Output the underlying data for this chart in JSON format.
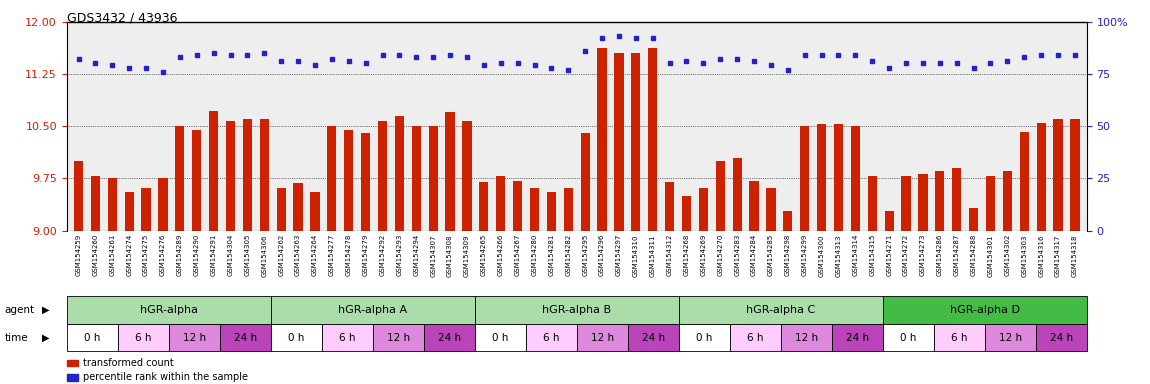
{
  "title": "GDS3432 / 43936",
  "gsm_labels": [
    "GSM154259",
    "GSM154260",
    "GSM154261",
    "GSM154274",
    "GSM154275",
    "GSM154276",
    "GSM154289",
    "GSM154290",
    "GSM154291",
    "GSM154304",
    "GSM154305",
    "GSM154306",
    "GSM154262",
    "GSM154263",
    "GSM154264",
    "GSM154277",
    "GSM154278",
    "GSM154279",
    "GSM154292",
    "GSM154293",
    "GSM154294",
    "GSM154307",
    "GSM154308",
    "GSM154309",
    "GSM154265",
    "GSM154266",
    "GSM154267",
    "GSM154280",
    "GSM154281",
    "GSM154282",
    "GSM154295",
    "GSM154296",
    "GSM154297",
    "GSM154310",
    "GSM154311",
    "GSM154312",
    "GSM154268",
    "GSM154269",
    "GSM154270",
    "GSM154283",
    "GSM154284",
    "GSM154285",
    "GSM154298",
    "GSM154299",
    "GSM154300",
    "GSM154313",
    "GSM154314",
    "GSM154315",
    "GSM154271",
    "GSM154272",
    "GSM154273",
    "GSM154286",
    "GSM154287",
    "GSM154288",
    "GSM154301",
    "GSM154302",
    "GSM154303",
    "GSM154316",
    "GSM154317",
    "GSM154318"
  ],
  "bar_values": [
    10.0,
    9.78,
    9.75,
    9.55,
    9.62,
    9.75,
    10.5,
    10.45,
    10.72,
    10.58,
    10.6,
    10.6,
    9.62,
    9.68,
    9.55,
    10.5,
    10.45,
    10.4,
    10.58,
    10.65,
    10.5,
    10.5,
    10.7,
    10.58,
    9.7,
    9.78,
    9.72,
    9.62,
    9.55,
    9.62,
    10.4,
    11.62,
    11.55,
    11.55,
    11.62,
    9.7,
    9.5,
    9.62,
    10.0,
    10.05,
    9.72,
    9.62,
    9.28,
    10.5,
    10.53,
    10.53,
    10.5,
    9.78,
    9.28,
    9.78,
    9.82,
    9.85,
    9.9,
    9.32,
    9.78,
    9.85,
    10.42,
    10.55,
    10.6,
    10.6
  ],
  "percentile_values": [
    82,
    80,
    79,
    78,
    78,
    76,
    83,
    84,
    85,
    84,
    84,
    85,
    81,
    81,
    79,
    82,
    81,
    80,
    84,
    84,
    83,
    83,
    84,
    83,
    79,
    80,
    80,
    79,
    78,
    77,
    86,
    92,
    93,
    92,
    92,
    80,
    81,
    80,
    82,
    82,
    81,
    79,
    77,
    84,
    84,
    84,
    84,
    81,
    78,
    80,
    80,
    80,
    80,
    78,
    80,
    81,
    83,
    84,
    84,
    84
  ],
  "agent_groups": [
    {
      "label": "hGR-alpha",
      "start": 0,
      "end": 12,
      "color": "#aaddaa"
    },
    {
      "label": "hGR-alpha A",
      "start": 12,
      "end": 24,
      "color": "#aaddaa"
    },
    {
      "label": "hGR-alpha B",
      "start": 24,
      "end": 36,
      "color": "#aaddaa"
    },
    {
      "label": "hGR-alpha C",
      "start": 36,
      "end": 48,
      "color": "#aaddaa"
    },
    {
      "label": "hGR-alpha D",
      "start": 48,
      "end": 60,
      "color": "#44bb44"
    }
  ],
  "time_labels": [
    "0 h",
    "6 h",
    "12 h",
    "24 h"
  ],
  "time_colors": [
    "#ffffff",
    "#ffccff",
    "#dd88dd",
    "#bb44bb"
  ],
  "ylim_left": [
    9.0,
    12.0
  ],
  "ylim_right": [
    0,
    100
  ],
  "yticks_left": [
    9.0,
    9.75,
    10.5,
    11.25,
    12.0
  ],
  "yticks_right": [
    0,
    25,
    50,
    75,
    100
  ],
  "bar_color": "#cc2200",
  "dot_color": "#2222cc",
  "background_color": "#eeeeee",
  "left_axis_color": "#cc2200",
  "right_axis_color": "#2222cc",
  "legend_items": [
    {
      "color": "#cc2200",
      "label": "transformed count"
    },
    {
      "color": "#2222cc",
      "label": "percentile rank within the sample"
    }
  ]
}
